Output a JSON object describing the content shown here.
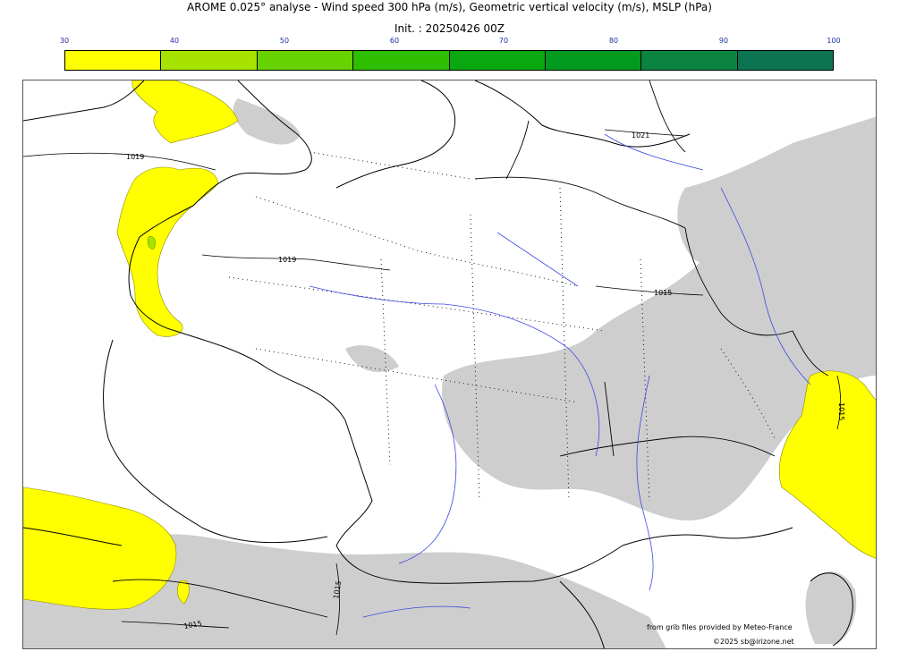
{
  "title": "AROME 0.025° analyse - Wind speed 300 hPa (m/s), Geometric vertical velocity (m/s), MSLP (hPa)",
  "subtitle": "Init. : 20250426 00Z",
  "colorbar": {
    "ticks": [
      "30",
      "40",
      "50",
      "60",
      "70",
      "80",
      "90",
      "100"
    ],
    "colors": [
      "#ffff00",
      "#a6e400",
      "#66d200",
      "#2ebf00",
      "#09a710",
      "#029a1e",
      "#0b8440",
      "#0c7450"
    ]
  },
  "isobars": {
    "labels": [
      "1019",
      "1019",
      "1021",
      "1015",
      "1015",
      "1015",
      "1015"
    ]
  },
  "credits": {
    "source": "from grib files provided by Meteo-France",
    "copyright": "©2025 sb@irizone.net"
  },
  "colors": {
    "wind_yellow": "#ffff00",
    "vertical_velocity_gray": "#c8c8c8",
    "rivers": "#3b49e0",
    "coast": "#000000"
  }
}
